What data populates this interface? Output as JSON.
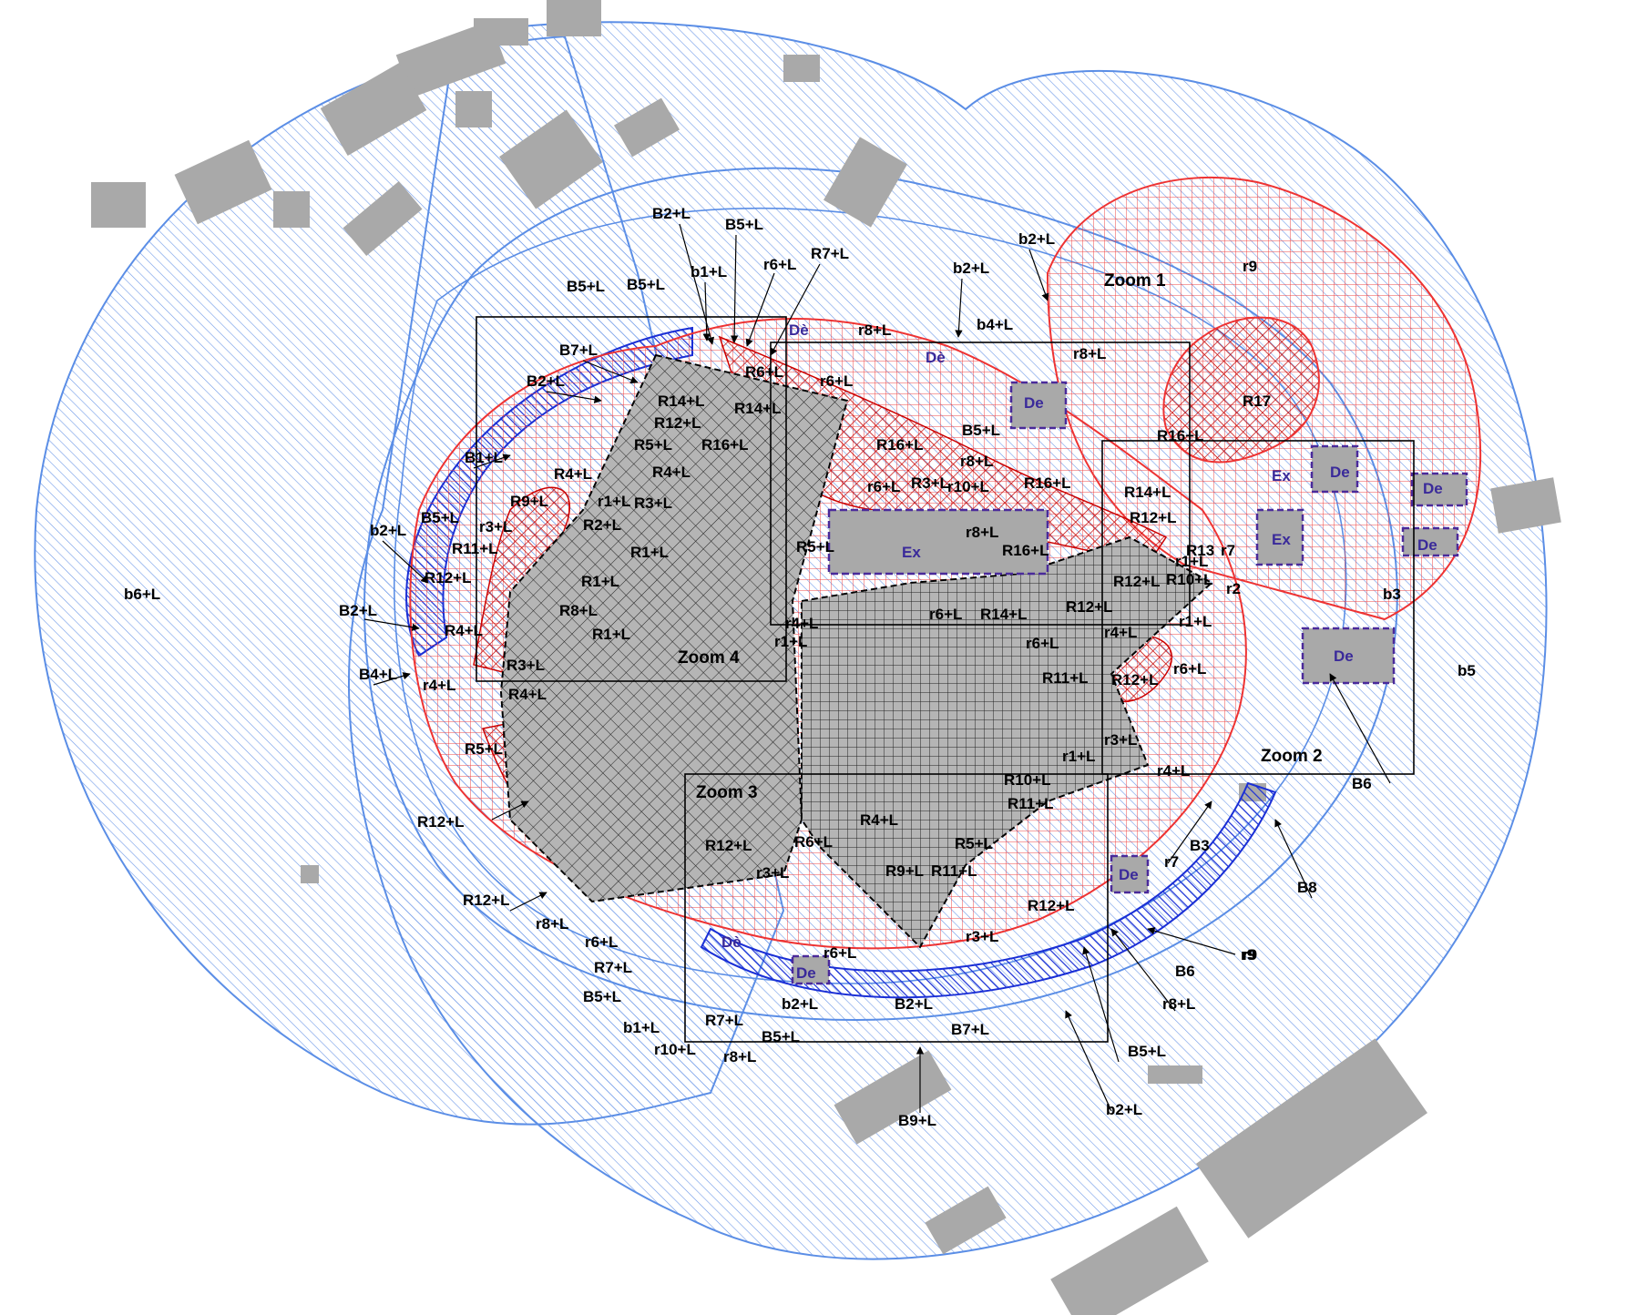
{
  "colors": {
    "blue_zone": "#5b8ee6",
    "blue_strong": "#1a2fd6",
    "red_zone": "#ee3333",
    "red_strong": "#cc0000",
    "building_gray": "#a9a9a9",
    "site_gray": "#b5b5b5",
    "de_outline": "#4a2a9a"
  },
  "zoom_boxes": [
    {
      "id": "zoom1",
      "label": "Zoom 1"
    },
    {
      "id": "zoom2",
      "label": "Zoom 2"
    },
    {
      "id": "zoom3",
      "label": "Zoom 3"
    },
    {
      "id": "zoom4",
      "label": "Zoom 4"
    }
  ],
  "zone_labels": {
    "b6": "b6+L",
    "b5": "b5",
    "b3": "b3",
    "r9_top": "r9",
    "r9_bottom": "r9",
    "r17": "R17"
  },
  "facilities": {
    "de": "De",
    "de_accent": "Dè",
    "ex": "Ex"
  },
  "labels": [
    "B2+L",
    "B5+L",
    "b1+L",
    "r6+L",
    "R7+L",
    "b2+L",
    "b2+L",
    "B5+L",
    "B5+L",
    "r8+L",
    "b4+L",
    "r8+L",
    "B7+L",
    "R6+L",
    "r6+L",
    "B2+L",
    "R14+L",
    "R14+L",
    "R12+L",
    "R5+L",
    "R16+L",
    "R4+L",
    "B1+L",
    "R4+L",
    "r1+L",
    "R3+L",
    "R3+L",
    "R16+L",
    "B5+L",
    "r8+L",
    "r6+L",
    "r10+L",
    "R16+L",
    "R14+L",
    "R16+L",
    "R12+L",
    "R9+L",
    "r3+L",
    "R2+L",
    "R1+L",
    "b2+L",
    "B5+L",
    "R11+L",
    "R12+L",
    "R1+L",
    "R8+L",
    "R1+L",
    "B2+L",
    "R4+L",
    "R3+L",
    "B4+L",
    "r4+L",
    "R4+L",
    "R5+L",
    "r8+L",
    "R16+L",
    "R5+L",
    "r4+L",
    "r1+L",
    "r6+L",
    "R14+L",
    "R12+L",
    "r6+L",
    "R12+L",
    "R10+L",
    "r1+L",
    "r2",
    "r7",
    "R13",
    "r1+L",
    "r4+L",
    "r6+L",
    "R11+L",
    "R12+L",
    "r3+L",
    "r1+L",
    "r4+L",
    "R10+L",
    "R11+L",
    "R4+L",
    "R6+L",
    "R12+L",
    "R5+L",
    "r3+L",
    "R9+L",
    "R11+L",
    "R12+L",
    "r3+L",
    "B3",
    "r7",
    "B8",
    "R12+L",
    "R12+L",
    "r8+L",
    "r6+L",
    "R7+L",
    "B5+L",
    "r6+L",
    "b1+L",
    "R7+L",
    "b2+L",
    "B2+L",
    "B7+L",
    "B5+L",
    "r10+L",
    "r8+L",
    "B6",
    "r9",
    "r8+L",
    "B5+L",
    "b2+L",
    "B9+L",
    "B6"
  ]
}
